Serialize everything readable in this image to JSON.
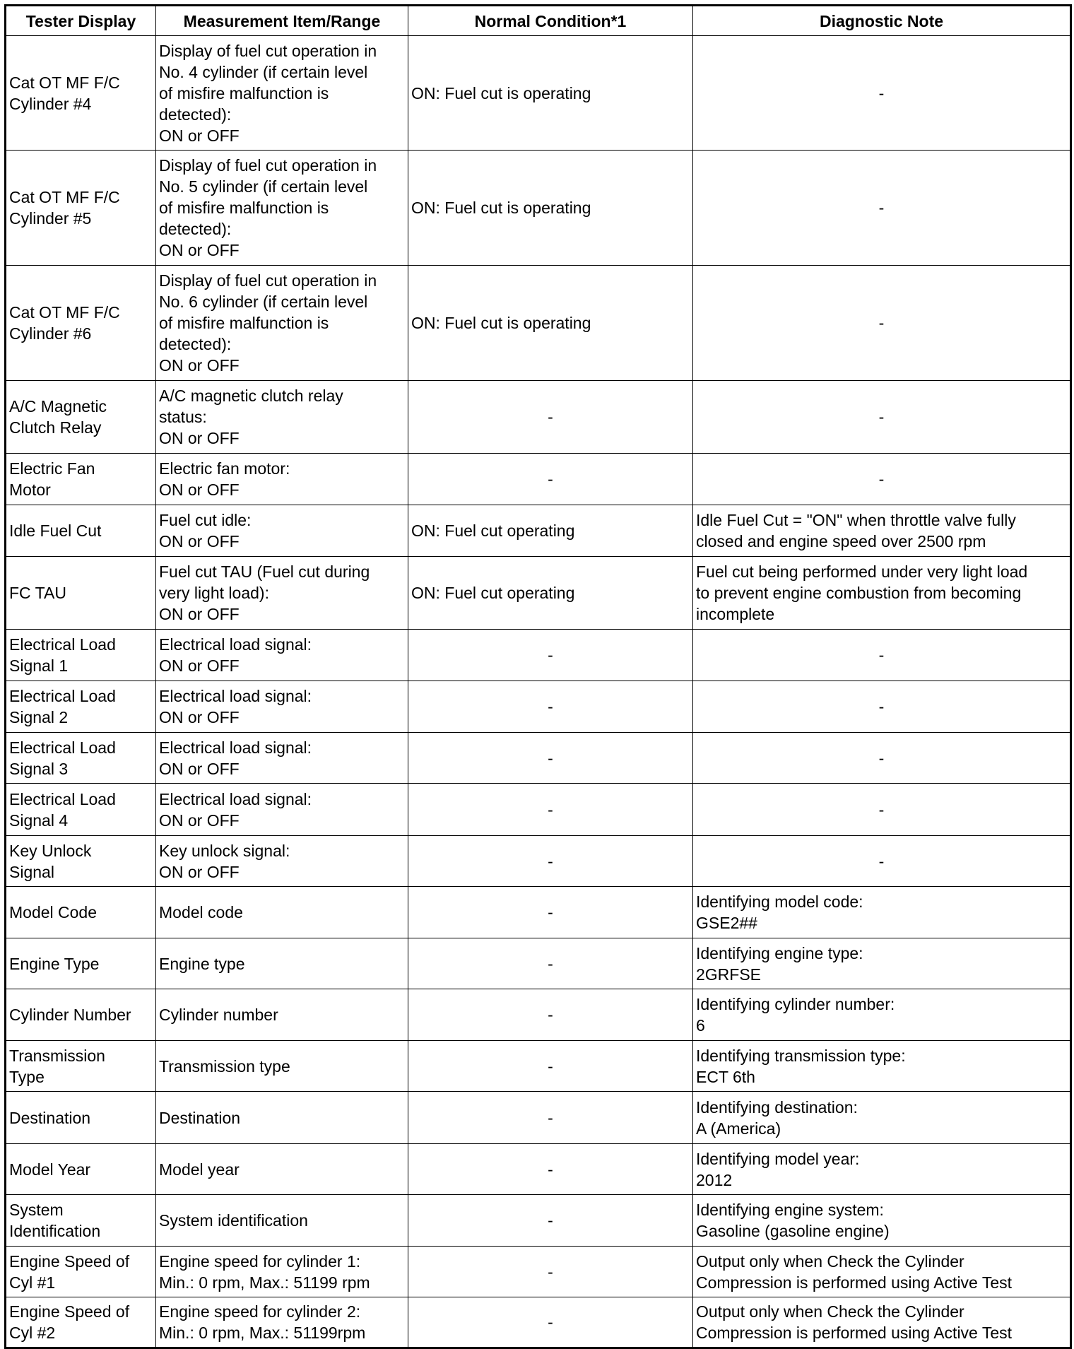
{
  "headers": [
    "Tester Display",
    "Measurement Item/Range",
    "Normal Condition*1",
    "Diagnostic Note"
  ],
  "rows": [
    [
      "Cat OT MF F/C\nCylinder #4",
      "Display of fuel cut operation in\nNo. 4 cylinder (if certain level\nof misfire malfunction is\ndetected):\nON or OFF",
      "ON: Fuel cut is operating",
      "-"
    ],
    [
      "Cat OT MF F/C\nCylinder #5",
      "Display of fuel cut operation in\nNo. 5 cylinder (if certain level\nof misfire malfunction is\ndetected):\nON or OFF",
      "ON: Fuel cut is operating",
      "-"
    ],
    [
      "Cat OT MF F/C\nCylinder #6",
      "Display of fuel cut operation in\nNo. 6 cylinder (if certain level\nof misfire malfunction is\ndetected):\nON or OFF",
      "ON: Fuel cut is operating",
      "-"
    ],
    [
      "A/C Magnetic\nClutch Relay",
      "A/C magnetic clutch relay\nstatus:\nON or OFF",
      "-",
      "-"
    ],
    [
      "Electric Fan\nMotor",
      "Electric fan motor:\nON or OFF",
      "-",
      "-"
    ],
    [
      "Idle Fuel Cut",
      "Fuel cut idle:\nON or OFF",
      "ON: Fuel cut operating",
      "Idle Fuel Cut = \"ON\" when throttle valve fully\nclosed and engine speed over 2500 rpm"
    ],
    [
      "FC TAU",
      "Fuel cut TAU (Fuel cut during\nvery light load):\nON or OFF",
      "ON: Fuel cut operating",
      "Fuel cut being performed under very light load\nto prevent engine combustion from becoming\nincomplete"
    ],
    [
      "Electrical Load\nSignal 1",
      "Electrical load signal:\nON or OFF",
      "-",
      "-"
    ],
    [
      "Electrical Load\nSignal 2",
      "Electrical load signal:\nON or OFF",
      "-",
      "-"
    ],
    [
      "Electrical Load\nSignal 3",
      "Electrical load signal:\nON or OFF",
      "-",
      "-"
    ],
    [
      "Electrical Load\nSignal 4",
      "Electrical load signal:\nON or OFF",
      "-",
      "-"
    ],
    [
      "Key Unlock\nSignal",
      "Key unlock signal:\nON or OFF",
      "-",
      "-"
    ],
    [
      "Model Code",
      "Model code",
      "-",
      "Identifying model code:\nGSE2##"
    ],
    [
      "Engine Type",
      "Engine type",
      "-",
      "Identifying engine type:\n2GRFSE"
    ],
    [
      "Cylinder Number",
      "Cylinder number",
      "-",
      "Identifying cylinder number:\n6"
    ],
    [
      "Transmission\nType",
      "Transmission type",
      "-",
      "Identifying transmission type:\nECT 6th"
    ],
    [
      "Destination",
      "Destination",
      "-",
      "Identifying destination:\nA (America)"
    ],
    [
      "Model Year",
      "Model year",
      "-",
      "Identifying model year:\n2012"
    ],
    [
      "System\nIdentification",
      "System identification",
      "-",
      "Identifying engine system:\nGasoline (gasoline engine)"
    ],
    [
      "Engine Speed of\nCyl #1",
      "Engine speed for cylinder 1:\nMin.: 0 rpm, Max.: 51199 rpm",
      "-",
      "Output only when Check the Cylinder\nCompression is performed using Active Test"
    ],
    [
      "Engine Speed of\nCyl #2",
      "Engine speed for cylinder 2:\nMin.: 0 rpm, Max.: 51199rpm",
      "-",
      "Output only when Check the Cylinder\nCompression is performed using Active Test"
    ]
  ]
}
